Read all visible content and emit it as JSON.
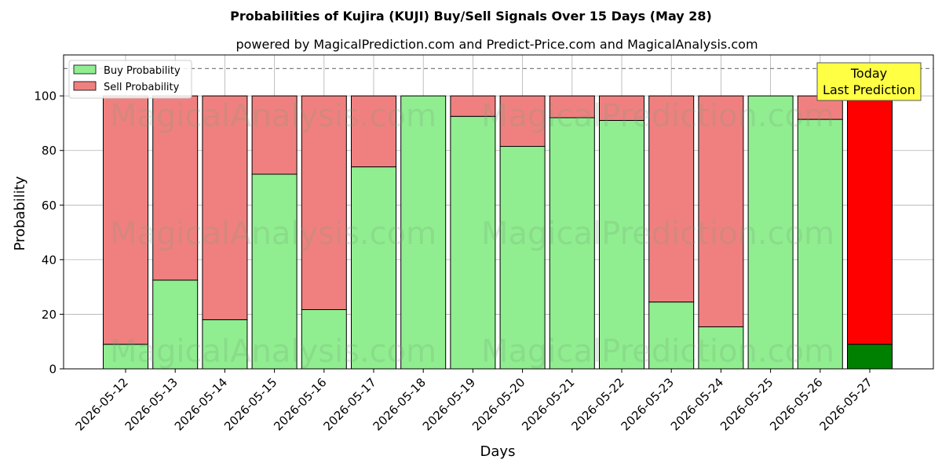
{
  "chart_data": {
    "type": "bar",
    "stacked": true,
    "title": "Probabilities of Kujira (KUJI) Buy/Sell Signals Over 15 Days (May 28)",
    "subtitle": "powered by MagicalPrediction.com and Predict-Price.com and MagicalAnalysis.com",
    "xlabel": "Days",
    "ylabel": "Probability",
    "ylim": [
      0,
      115
    ],
    "yticks": [
      0,
      20,
      40,
      60,
      80,
      100
    ],
    "reference_line": 110,
    "grid": true,
    "legend_position": "top-left",
    "categories": [
      "2026-05-12",
      "2026-05-13",
      "2026-05-14",
      "2026-05-15",
      "2026-05-16",
      "2026-05-17",
      "2026-05-18",
      "2026-05-19",
      "2026-05-20",
      "2026-05-21",
      "2026-05-22",
      "2026-05-23",
      "2026-05-24",
      "2026-05-25",
      "2026-05-26",
      "2026-05-27"
    ],
    "series": [
      {
        "name": "Buy Probability",
        "color": "#90ee90",
        "values": [
          9,
          32.5,
          18,
          71.3,
          21.7,
          74,
          100,
          92.5,
          81.5,
          92,
          91,
          24.5,
          15.4,
          100,
          91.4,
          9
        ]
      },
      {
        "name": "Sell Probability",
        "color": "#f08080",
        "values": [
          91,
          67.5,
          82,
          28.7,
          78.3,
          26,
          0,
          7.5,
          18.5,
          8,
          9,
          75.5,
          84.6,
          0,
          8.6,
          91
        ]
      }
    ],
    "highlight": {
      "index": 15,
      "buy_color": "#008000",
      "sell_color": "#ff0000"
    },
    "annotation": {
      "line1": "Today",
      "line2": "Last Prediction",
      "background": "#ffff44"
    },
    "watermarks": [
      "MagicalAnalysis.com",
      "MagicalPrediction.com"
    ]
  }
}
